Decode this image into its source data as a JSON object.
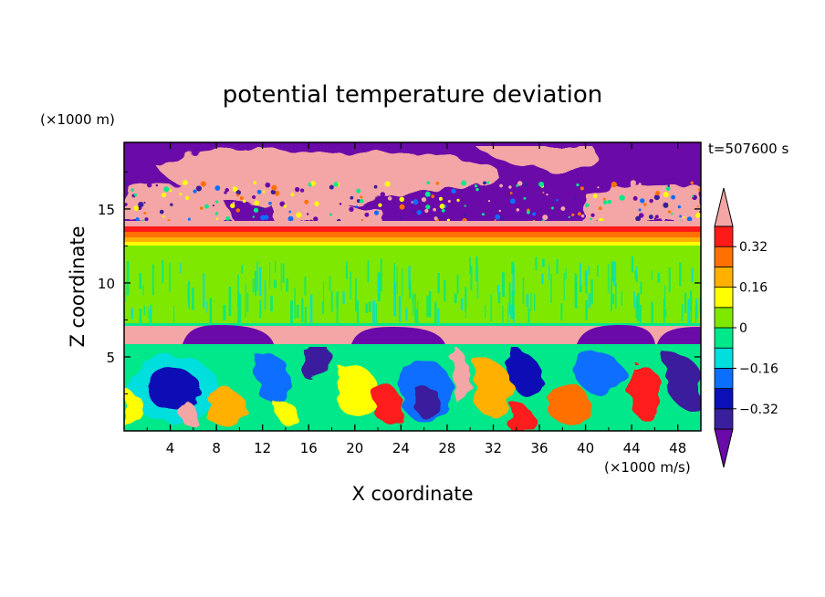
{
  "chart_data": {
    "type": "heatmap",
    "title": "potential temperature deviation",
    "xlabel": "X coordinate",
    "ylabel": "Z coordinate",
    "x_unit": "(×1000 m/s)",
    "y_unit": "(×1000 m)",
    "time_label": "t=507600 s",
    "xlim": [
      0,
      50
    ],
    "ylim": [
      0,
      19.5
    ],
    "x_ticks": [
      4,
      8,
      12,
      16,
      20,
      24,
      28,
      32,
      36,
      40,
      44,
      48
    ],
    "y_ticks": [
      5,
      10,
      15
    ],
    "colorbar": {
      "levels": [
        -0.4,
        -0.32,
        -0.24,
        -0.16,
        -0.08,
        0,
        0.08,
        0.16,
        0.24,
        0.32,
        0.4
      ],
      "colors": [
        "#6a0aa8",
        "#3a1f9c",
        "#0a10b5",
        "#0a6eff",
        "#00dede",
        "#00e889",
        "#7fe800",
        "#ffff00",
        "#ffb000",
        "#ff7000",
        "#ff1a1a",
        "#f4a6a6"
      ],
      "tick_labels": [
        "0.32",
        "0.16",
        "0",
        "-0.16",
        "-0.32"
      ],
      "tick_values": [
        0.32,
        0.16,
        0,
        -0.16,
        -0.32
      ]
    },
    "layers": [
      {
        "zmin": 0,
        "zmax": 7.4,
        "description": "turbulent mixed layer with strong positive and negative anomalies"
      },
      {
        "zmin": 7.4,
        "zmax": 12.5,
        "description": "near-neutral layer (0 to 0.08)"
      },
      {
        "zmin": 12.5,
        "zmax": 14.3,
        "description": "stable positive banding (0.16 to 0.4)"
      },
      {
        "zmin": 14.3,
        "zmax": 19.5,
        "description": "upper layer alternating below -0.4 and above 0.4"
      }
    ]
  }
}
